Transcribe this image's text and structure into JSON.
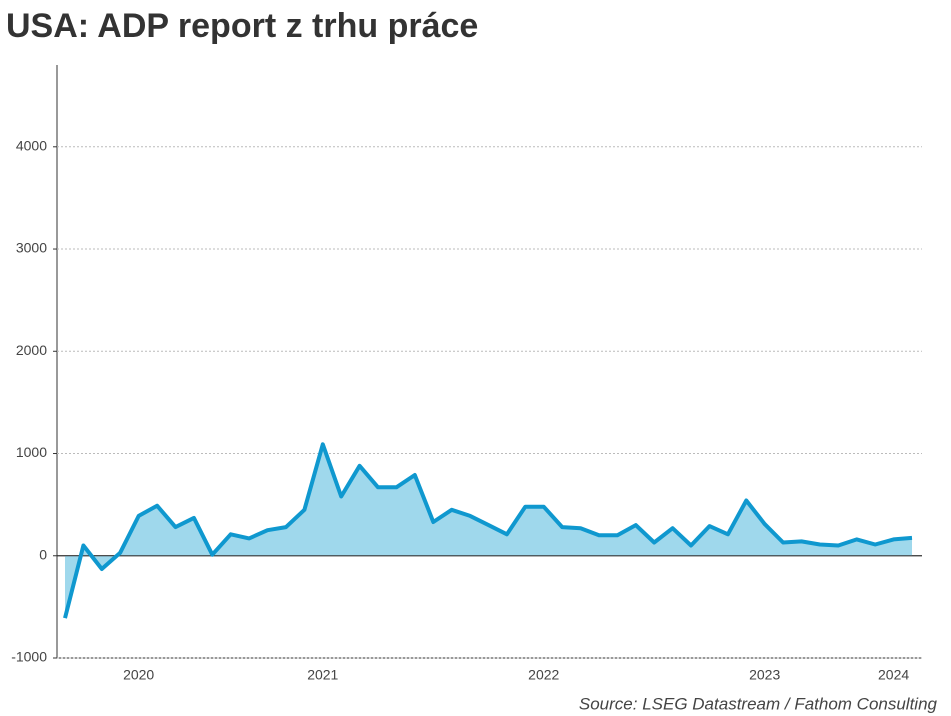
{
  "chart_data": {
    "type": "area",
    "title": "USA: ADP report z trhu práce",
    "source": "Source: LSEG Datastream / Fathom Consulting",
    "categories": [
      null,
      null,
      null,
      null,
      "2020",
      null,
      null,
      null,
      null,
      null,
      null,
      null,
      null,
      null,
      "2021",
      null,
      null,
      null,
      null,
      null,
      null,
      null,
      null,
      null,
      null,
      null,
      "2022",
      null,
      null,
      null,
      null,
      null,
      null,
      null,
      null,
      null,
      null,
      null,
      "2023",
      null,
      null,
      null,
      null,
      null,
      null,
      "2024",
      null
    ],
    "values": [
      -610,
      100,
      -130,
      30,
      390,
      490,
      280,
      370,
      10,
      210,
      170,
      250,
      280,
      450,
      1090,
      580,
      880,
      670,
      670,
      790,
      330,
      450,
      390,
      300,
      210,
      480,
      480,
      280,
      270,
      200,
      200,
      300,
      130,
      270,
      100,
      290,
      210,
      540,
      310,
      130,
      140,
      110,
      100,
      160,
      110,
      160,
      175
    ],
    "color": "#0f98cf",
    "fill": "#9fd8ec",
    "ylim": [
      -1000,
      4800
    ],
    "yticks": [
      -1000,
      0,
      1000,
      2000,
      3000,
      4000
    ],
    "grid": true
  }
}
